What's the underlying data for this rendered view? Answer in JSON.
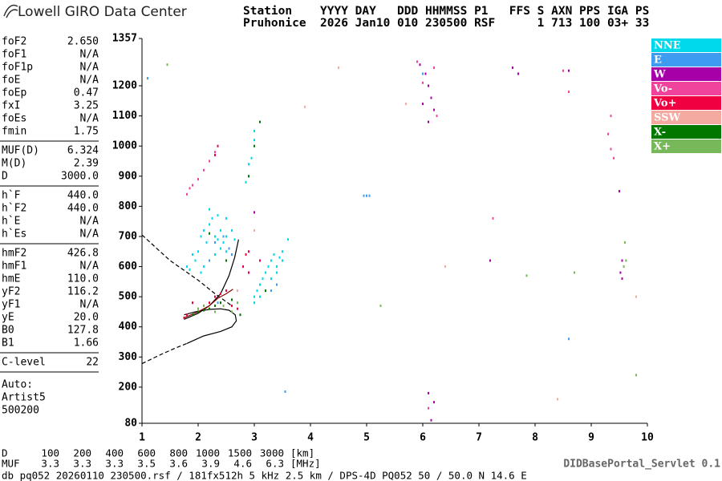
{
  "chart_data": {
    "type": "scatter",
    "logo": "Lowell GIRO Data Center",
    "header": [
      "Station    YYYY DAY   DDD HHMMSS P1   FFS S AXN PPS IGA PS",
      "Pruhonice  2026 Jan10 010 230500 RSF      1 713 100 03+ 33"
    ],
    "xlim": [
      1,
      10
    ],
    "xticks": [
      1,
      2,
      3,
      4,
      5,
      6,
      7,
      8,
      9,
      10
    ],
    "ylim": [
      80,
      1357
    ],
    "yticks": [
      80,
      200,
      300,
      400,
      500,
      600,
      700,
      800,
      900,
      1000,
      1100,
      1200,
      1357
    ],
    "legend": "right",
    "series": [
      {
        "name": "NNE",
        "color": "#00d8ec",
        "x": [
          1.95,
          2.0,
          2.05,
          2.1,
          2.15,
          2.2,
          2.25,
          2.3,
          2.35,
          2.4,
          2.45,
          2.5,
          2.1,
          2.2,
          2.3,
          2.4,
          2.5,
          2.6,
          2.65,
          2.2,
          2.35,
          2.5,
          1.8,
          1.9,
          2.05,
          3.0,
          3.05,
          3.1,
          3.15,
          3.2,
          3.25,
          3.3,
          3.35,
          3.4,
          3.45,
          3.5,
          3.3,
          3.4,
          3.5,
          2.9,
          2.95,
          3.0,
          2.85,
          2.9,
          3.0,
          3.0,
          3.1,
          3.2,
          1.85,
          3.6
        ],
        "y": [
          620,
          650,
          700,
          720,
          680,
          740,
          760,
          700,
          690,
          720,
          680,
          650,
          600,
          620,
          640,
          660,
          700,
          720,
          690,
          790,
          770,
          760,
          600,
          640,
          580,
          500,
          520,
          540,
          560,
          580,
          600,
          620,
          640,
          600,
          630,
          650,
          560,
          580,
          620,
          900,
          960,
          1020,
          880,
          940,
          1050,
          480,
          500,
          520,
          590,
          690
        ]
      },
      {
        "name": "E",
        "color": "#3d9cf0",
        "x": [
          2.2,
          2.3,
          2.45,
          2.55,
          2.6,
          3.3,
          3.4,
          5.0,
          4.95,
          5.05,
          1.1,
          3.55,
          6.0,
          8.6,
          2.35
        ],
        "y": [
          620,
          680,
          700,
          660,
          640,
          520,
          540,
          835,
          835,
          835,
          1225,
          185,
          1240,
          360,
          480
        ]
      },
      {
        "name": "W",
        "color": "#a800a8",
        "x": [
          5.95,
          6.05,
          6.1,
          6.15,
          6.2,
          6.0,
          6.1,
          6.2,
          7.2,
          7.6,
          8.6,
          9.55,
          9.55,
          9.52,
          7.7,
          6.1,
          6.15,
          9.5,
          3.0
        ],
        "y": [
          1270,
          1240,
          1200,
          1160,
          1120,
          1140,
          1080,
          150,
          620,
          1260,
          1250,
          560,
          620,
          580,
          1240,
          180,
          90,
          850,
          780
        ]
      },
      {
        "name": "Vo-",
        "color": "#f0449c",
        "x": [
          1.8,
          1.85,
          1.9,
          2.0,
          2.1,
          2.2,
          2.3,
          5.9,
          6.0,
          6.2,
          6.25,
          8.5,
          8.6,
          9.3,
          9.35,
          9.4,
          9.35,
          7.25,
          6.1
        ],
        "y": [
          840,
          860,
          870,
          890,
          920,
          950,
          980,
          1280,
          1210,
          1260,
          1100,
          1250,
          1180,
          1040,
          1100,
          960,
          990,
          760,
          130
        ]
      },
      {
        "name": "Vo+",
        "color": "#f00040",
        "x": [
          1.75,
          1.8,
          2.0,
          2.1,
          2.2,
          2.3,
          2.4,
          2.5,
          2.6,
          2.7,
          2.8,
          2.85,
          3.1,
          2.3,
          2.35,
          1.9,
          2.9,
          2.9
        ],
        "y": [
          430,
          440,
          460,
          470,
          480,
          500,
          510,
          520,
          470,
          460,
          600,
          640,
          620,
          970,
          1000,
          480,
          650,
          580
        ]
      },
      {
        "name": "SSW",
        "color": "#f4aaa0",
        "x": [
          2.7,
          3.0,
          5.7,
          6.4,
          8.4,
          9.8,
          3.9,
          4.5
        ],
        "y": [
          520,
          720,
          1140,
          600,
          160,
          500,
          1130,
          1260
        ]
      },
      {
        "name": "X-",
        "color": "#007800",
        "x": [
          1.9,
          2.0,
          2.1,
          2.2,
          2.3,
          2.4,
          2.6,
          2.75,
          2.9,
          3.0,
          3.1,
          3.2,
          2.5,
          2.2
        ],
        "y": [
          440,
          450,
          455,
          460,
          470,
          480,
          490,
          440,
          900,
          1000,
          1080,
          520,
          620,
          710
        ]
      },
      {
        "name": "X+",
        "color": "#77b85a",
        "x": [
          2.0,
          2.1,
          2.3,
          2.45,
          2.6,
          2.7,
          9.6,
          9.62,
          9.58,
          9.8,
          5.25,
          7.85,
          8.7,
          1.45
        ],
        "y": [
          460,
          470,
          450,
          470,
          450,
          480,
          680,
          620,
          600,
          240,
          470,
          570,
          580,
          1270
        ]
      }
    ],
    "curves": [
      {
        "color": "#000000",
        "dashed": true,
        "x": [
          1,
          1.5,
          2.0,
          2.3,
          2.6
        ],
        "y": [
          705,
          620,
          555,
          510,
          470
        ]
      },
      {
        "color": "#000000",
        "dashed": true,
        "x": [
          1,
          1.3,
          1.6,
          1.8
        ],
        "y": [
          278,
          305,
          330,
          345
        ]
      },
      {
        "color": "#000000",
        "dashed": false,
        "x": [
          1.8,
          2.1,
          2.4,
          2.6,
          2.68,
          2.66,
          2.55,
          2.4,
          2.2,
          1.95,
          1.75
        ],
        "y": [
          345,
          370,
          385,
          400,
          420,
          440,
          455,
          460,
          458,
          450,
          440
        ]
      },
      {
        "color": "#000000",
        "dashed": false,
        "x": [
          1.75,
          2.0,
          2.2,
          2.4,
          2.55,
          2.65,
          2.72
        ],
        "y": [
          425,
          445,
          470,
          510,
          570,
          630,
          690
        ]
      },
      {
        "color": "#8b0000",
        "dashed": false,
        "x": [
          1.75,
          2.0,
          2.2,
          2.35,
          2.5,
          2.62
        ],
        "y": [
          430,
          450,
          470,
          495,
          510,
          525
        ]
      }
    ],
    "parameters": [
      [
        [
          "foF2",
          "2.650"
        ],
        [
          "foF1",
          "N/A"
        ],
        [
          "foF1p",
          "N/A"
        ],
        [
          "foE",
          "N/A"
        ],
        [
          "foEp",
          "0.47"
        ],
        [
          "fxI",
          "3.25"
        ],
        [
          "foEs",
          "N/A"
        ],
        [
          "fmin",
          "1.75"
        ]
      ],
      [
        [
          "MUF(D)",
          "6.324"
        ],
        [
          "M(D)",
          "2.39"
        ],
        [
          "D",
          "3000.0"
        ]
      ],
      [
        [
          "h`F",
          "440.0"
        ],
        [
          "h`F2",
          "440.0"
        ],
        [
          "h`E",
          "N/A"
        ],
        [
          "h`Es",
          "N/A"
        ]
      ],
      [
        [
          "hmF2",
          "426.8"
        ],
        [
          "hmF1",
          "N/A"
        ],
        [
          "hmE",
          "110.0"
        ],
        [
          "yF2",
          "116.2"
        ],
        [
          "yF1",
          "N/A"
        ],
        [
          "yE",
          "20.0"
        ],
        [
          "B0",
          "127.8"
        ],
        [
          "B1",
          "1.66"
        ]
      ],
      [
        [
          "C-level",
          "22"
        ]
      ]
    ],
    "notes": [
      "Auto:",
      "Artist5",
      "500200"
    ],
    "muf_table": {
      "d_label": "D",
      "d_values": [
        100,
        200,
        400,
        600,
        800,
        1000,
        1500,
        3000
      ],
      "d_unit": "[km]",
      "muf_label": "MUF",
      "muf_values": [
        3.3,
        3.3,
        3.3,
        3.5,
        3.6,
        3.9,
        4.6,
        6.3
      ],
      "muf_unit": "[MHz]"
    },
    "footer": "db pq052 20260110 230500.rsf / 181fx512h 5 kHz 2.5 km / DPS-4D PQ052 50 / 50.0 N 14.6 E",
    "servlet": "DIDBasePortal_Servlet 0.1"
  }
}
